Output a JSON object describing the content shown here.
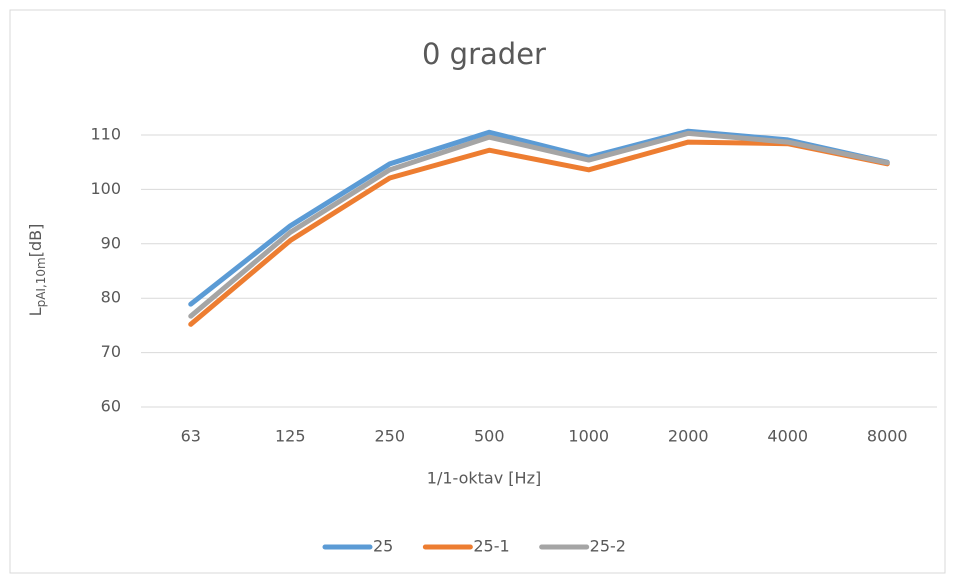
{
  "chart_data": {
    "type": "line",
    "title": "0 grader",
    "x_label": "1/1-oktav [Hz]",
    "y_label": {
      "main": "L",
      "sub": "pAI,10m",
      "unit": "[dB]"
    },
    "categories": [
      "63",
      "125",
      "250",
      "500",
      "1000",
      "2000",
      "4000",
      "8000"
    ],
    "series": [
      {
        "name": "25",
        "color": "#5b9bd5",
        "values": [
          78.9,
          93.3,
          104.7,
          110.5,
          105.9,
          110.7,
          109.1,
          105.0
        ]
      },
      {
        "name": "25-1",
        "color": "#ed7d31",
        "values": [
          75.2,
          90.6,
          102.1,
          107.2,
          103.6,
          108.7,
          108.4,
          104.7
        ]
      },
      {
        "name": "25-2",
        "color": "#a5a5a5",
        "values": [
          76.7,
          92.1,
          103.6,
          109.6,
          105.4,
          110.3,
          108.7,
          104.9
        ]
      }
    ],
    "ylim": [
      60,
      110
    ],
    "yticks": [
      60,
      70,
      80,
      90,
      100,
      110
    ],
    "grid": true,
    "legend": "bottom"
  }
}
